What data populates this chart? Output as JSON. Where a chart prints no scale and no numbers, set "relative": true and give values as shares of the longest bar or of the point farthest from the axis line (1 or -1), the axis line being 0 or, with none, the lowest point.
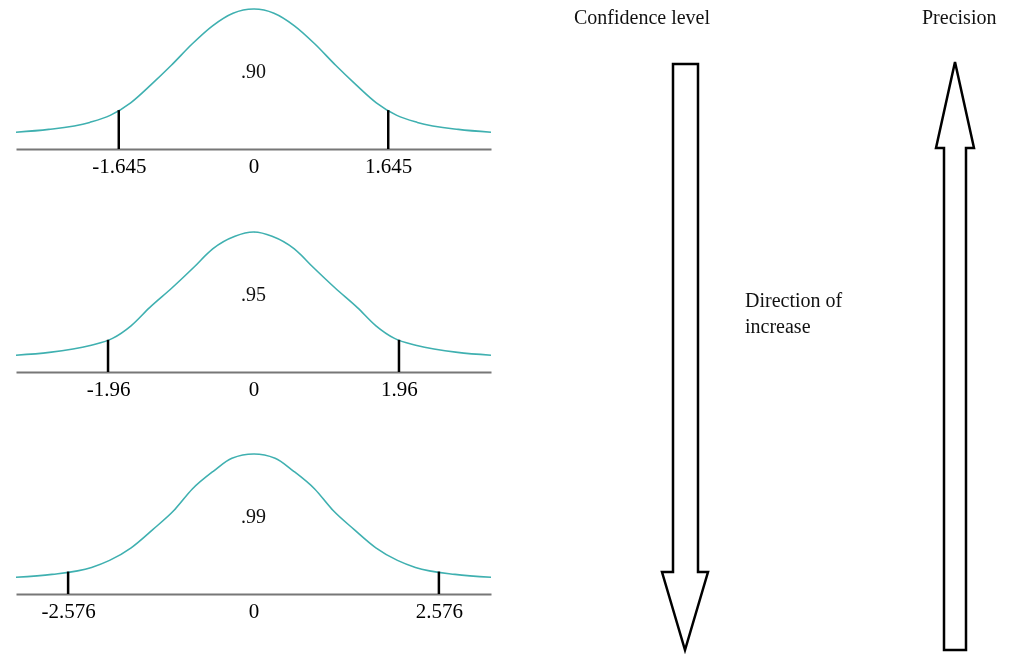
{
  "chart_data": [
    {
      "type": "line",
      "relative": true,
      "xlim": [
        -2.9,
        2.9
      ],
      "xticks": [
        -1.645,
        0,
        1.645
      ],
      "annotations": [
        ".90"
      ],
      "ref_lines": [
        {
          "axis": "x",
          "value": -1.645
        },
        {
          "axis": "x",
          "value": 1.645
        }
      ],
      "series": [
        {
          "color": "#3fb0b0",
          "x": [
            -2.9,
            -2.5,
            -2,
            -1.75,
            -1.5,
            -1.25,
            -1,
            -0.75,
            -0.5,
            -0.25,
            0,
            0.25,
            0.5,
            0.75,
            1,
            1.25,
            1.5,
            1.75,
            2,
            2.5,
            2.9
          ],
          "values": [
            0.12,
            0.14,
            0.19,
            0.24,
            0.33,
            0.46,
            0.6,
            0.75,
            0.88,
            0.97,
            1,
            0.97,
            0.88,
            0.75,
            0.6,
            0.46,
            0.33,
            0.24,
            0.19,
            0.14,
            0.12
          ]
        }
      ]
    },
    {
      "type": "line",
      "relative": true,
      "xlim": [
        -3.2,
        3.2
      ],
      "xticks": [
        -1.96,
        0,
        1.96
      ],
      "annotations": [
        ".95"
      ],
      "ref_lines": [
        {
          "axis": "x",
          "value": -1.96
        },
        {
          "axis": "x",
          "value": 1.96
        }
      ],
      "series": [
        {
          "color": "#3fb0b0",
          "x": [
            -3.2,
            -2.75,
            -2.2,
            -1.9,
            -1.65,
            -1.4,
            -1.1,
            -0.8,
            -0.55,
            -0.25,
            0,
            0.25,
            0.55,
            0.8,
            1.1,
            1.4,
            1.65,
            1.9,
            2.2,
            2.75,
            3.2
          ],
          "values": [
            0.12,
            0.14,
            0.19,
            0.24,
            0.33,
            0.46,
            0.6,
            0.75,
            0.88,
            0.97,
            1,
            0.97,
            0.88,
            0.75,
            0.6,
            0.46,
            0.33,
            0.24,
            0.19,
            0.14,
            0.12
          ]
        }
      ]
    },
    {
      "type": "line",
      "relative": true,
      "xlim": [
        -3.3,
        3.3
      ],
      "xticks": [
        -2.576,
        0,
        2.576
      ],
      "annotations": [
        ".99"
      ],
      "ref_lines": [
        {
          "axis": "x",
          "value": -2.576
        },
        {
          "axis": "x",
          "value": 2.576
        }
      ],
      "series": [
        {
          "color": "#3fb0b0",
          "x": [
            -3.3,
            -2.8,
            -2.25,
            -2,
            -1.7,
            -1.4,
            -1.1,
            -0.85,
            -0.55,
            -0.3,
            0,
            0.3,
            0.55,
            0.85,
            1.1,
            1.4,
            1.7,
            2,
            2.25,
            2.8,
            3.3
          ],
          "values": [
            0.12,
            0.14,
            0.19,
            0.24,
            0.33,
            0.46,
            0.6,
            0.75,
            0.88,
            0.97,
            1,
            0.97,
            0.88,
            0.75,
            0.6,
            0.46,
            0.33,
            0.24,
            0.19,
            0.14,
            0.12
          ]
        }
      ]
    },
    {
      "type": "other",
      "annotations": [
        "Confidence level",
        "Precision",
        "Direction of increase"
      ]
    }
  ]
}
